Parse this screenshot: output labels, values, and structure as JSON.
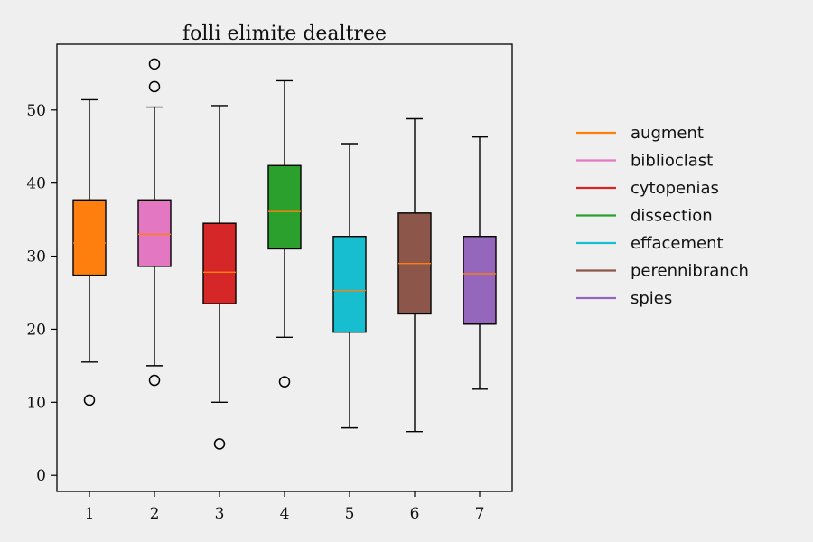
{
  "chart_data": {
    "type": "boxplot",
    "title": "folli elimite dealtree",
    "xlabel": "",
    "ylabel": "",
    "categories": [
      "1",
      "2",
      "3",
      "4",
      "5",
      "6",
      "7"
    ],
    "ylim": [
      -2.2,
      59.0
    ],
    "yticks": [
      0,
      10,
      20,
      30,
      40,
      50
    ],
    "legend_position": "right",
    "series": [
      {
        "name": "augment",
        "color": "#ff7f0e",
        "whisker_low": 15.5,
        "q1": 27.4,
        "median": 31.8,
        "q3": 37.7,
        "whisker_high": 51.4,
        "outliers": [
          10.3
        ]
      },
      {
        "name": "biblioclast",
        "color": "#e377c2",
        "whisker_low": 15.0,
        "q1": 28.6,
        "median": 33.0,
        "q3": 37.7,
        "whisker_high": 50.4,
        "outliers": [
          53.2,
          56.3,
          13.0
        ]
      },
      {
        "name": "cytopenias",
        "color": "#d62728",
        "whisker_low": 10.0,
        "q1": 23.5,
        "median": 27.8,
        "q3": 34.5,
        "whisker_high": 50.6,
        "outliers": [
          4.3
        ]
      },
      {
        "name": "dissection",
        "color": "#2ca02c",
        "whisker_low": 18.9,
        "q1": 31.0,
        "median": 36.1,
        "q3": 42.4,
        "whisker_high": 54.0,
        "outliers": [
          12.8
        ]
      },
      {
        "name": "effacement",
        "color": "#17becf",
        "whisker_low": 6.5,
        "q1": 19.6,
        "median": 25.3,
        "q3": 32.7,
        "whisker_high": 45.4,
        "outliers": []
      },
      {
        "name": "perennibranch",
        "color": "#8c564b",
        "whisker_low": 6.0,
        "q1": 22.1,
        "median": 29.0,
        "q3": 35.9,
        "whisker_high": 48.8,
        "outliers": []
      },
      {
        "name": "spies",
        "color": "#9467bd",
        "whisker_low": 11.8,
        "q1": 20.7,
        "median": 27.6,
        "q3": 32.7,
        "whisker_high": 46.3,
        "outliers": []
      }
    ],
    "median_color": "#ff7f0e"
  }
}
